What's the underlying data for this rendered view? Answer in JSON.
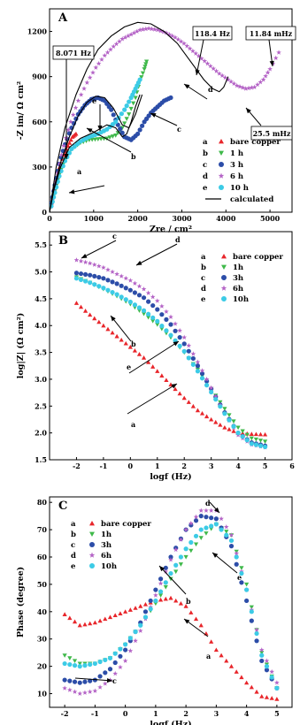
{
  "chart_data": [
    {
      "panel": "A",
      "type": "scatter",
      "xlabel": "Zre /    cm²",
      "ylabel": "-Z im/ Ω cm²",
      "xlim": [
        0,
        5500
      ],
      "ylim": [
        0,
        1350
      ],
      "xticks": [
        0,
        1000,
        2000,
        3000,
        4000,
        5000
      ],
      "yticks": [
        0,
        300,
        600,
        900,
        1200
      ],
      "legend": {
        "position": "right",
        "entries": [
          {
            "letter": "a",
            "name": "bare copper",
            "marker": "triangle-up",
            "color": "#e8262b"
          },
          {
            "letter": "b",
            "name": "1 h",
            "marker": "triangle-down",
            "color": "#3fb94a"
          },
          {
            "letter": "c",
            "name": "3 h",
            "marker": "circle",
            "color": "#2c4da8"
          },
          {
            "letter": "d",
            "name": "6 h",
            "marker": "star",
            "color": "#b463c6"
          },
          {
            "letter": "e",
            "name": "10 h",
            "marker": "circle",
            "color": "#3ccbe6"
          },
          {
            "letter": "",
            "name": "calculated",
            "marker": "line",
            "color": "#000000"
          }
        ]
      },
      "annotations": [
        "8.071 Hz",
        "118.4 Hz",
        "11.84 mHz",
        "25.5 mHz"
      ],
      "curve_labels": [
        "a",
        "b",
        "c",
        "d",
        "e"
      ],
      "series": [
        {
          "name": "bare copper",
          "x": [
            30,
            80,
            150,
            230,
            320,
            420,
            520,
            600
          ],
          "y": [
            40,
            110,
            210,
            300,
            380,
            440,
            500,
            520
          ]
        },
        {
          "name": "1 h",
          "x": [
            40,
            120,
            220,
            350,
            500,
            700,
            900,
            1100,
            1300,
            1500,
            1650,
            1800,
            1950,
            2050,
            2150,
            2200
          ],
          "y": [
            50,
            140,
            250,
            350,
            420,
            460,
            480,
            485,
            490,
            510,
            560,
            650,
            760,
            870,
            950,
            1000
          ]
        },
        {
          "name": "3 h",
          "x": [
            40,
            120,
            220,
            350,
            500,
            650,
            800,
            950,
            1100,
            1250,
            1400,
            1550,
            1700,
            1850,
            2000,
            2150,
            2300,
            2450,
            2600,
            2750
          ],
          "y": [
            60,
            180,
            320,
            450,
            560,
            650,
            710,
            750,
            760,
            740,
            680,
            580,
            500,
            480,
            520,
            600,
            660,
            700,
            740,
            760
          ]
        },
        {
          "name": "6 h",
          "x": [
            60,
            180,
            320,
            480,
            650,
            850,
            1050,
            1250,
            1450,
            1650,
            1850,
            2050,
            2250,
            2450,
            2650,
            2850,
            3050,
            3250,
            3450,
            3650,
            3850,
            4050,
            4250,
            4450,
            4650,
            4850,
            5000,
            5200
          ],
          "y": [
            80,
            260,
            440,
            600,
            740,
            860,
            960,
            1040,
            1100,
            1150,
            1180,
            1210,
            1220,
            1210,
            1190,
            1160,
            1120,
            1070,
            1020,
            970,
            920,
            880,
            840,
            820,
            830,
            880,
            950,
            1060
          ]
        },
        {
          "name": "10 h",
          "x": [
            40,
            120,
            220,
            350,
            500,
            700,
            900,
            1100,
            1300,
            1500,
            1700,
            1850,
            1950,
            2050
          ],
          "y": [
            40,
            130,
            240,
            340,
            420,
            470,
            500,
            520,
            550,
            600,
            680,
            760,
            820,
            880
          ]
        }
      ]
    },
    {
      "panel": "B",
      "type": "scatter",
      "xlabel": "logf (Hz)",
      "ylabel": "log|Z| (Ω cm²)",
      "xlim": [
        -3,
        6
      ],
      "ylim": [
        1.5,
        5.75
      ],
      "xticks": [
        -2,
        -1,
        0,
        1,
        2,
        3,
        4,
        5,
        6
      ],
      "yticks": [
        1.5,
        2.0,
        2.5,
        3.0,
        3.5,
        4.0,
        4.5,
        5.0,
        5.5
      ],
      "legend": {
        "position": "top-right",
        "entries": [
          {
            "letter": "a",
            "name": "bare copper"
          },
          {
            "letter": "b",
            "name": "1h"
          },
          {
            "letter": "c",
            "name": "3h"
          },
          {
            "letter": "d",
            "name": "6h"
          },
          {
            "letter": "e",
            "name": "10h"
          }
        ]
      },
      "curve_labels": [
        "a",
        "b",
        "c",
        "d",
        "e"
      ],
      "series": [
        {
          "name": "bare copper",
          "x": [
            -2,
            -1.5,
            -1,
            -0.5,
            0,
            0.5,
            1,
            1.5,
            2,
            2.5,
            3,
            3.5,
            4,
            4.5,
            5
          ],
          "y": [
            4.42,
            4.2,
            4.0,
            3.8,
            3.6,
            3.4,
            3.15,
            2.9,
            2.65,
            2.42,
            2.25,
            2.1,
            2.0,
            1.98,
            1.97
          ]
        },
        {
          "name": "1h",
          "x": [
            -2,
            -1.5,
            -1,
            -0.5,
            0,
            0.5,
            1,
            1.5,
            2,
            2.5,
            3,
            3.5,
            4,
            4.5,
            5
          ],
          "y": [
            4.9,
            4.8,
            4.68,
            4.55,
            4.4,
            4.22,
            4.02,
            3.78,
            3.5,
            3.18,
            2.82,
            2.45,
            2.1,
            1.9,
            1.84
          ]
        },
        {
          "name": "3h",
          "x": [
            -2,
            -1.5,
            -1,
            -0.5,
            0,
            0.5,
            1,
            1.5,
            2,
            2.5,
            3,
            3.5,
            4,
            4.5,
            5
          ],
          "y": [
            4.98,
            4.94,
            4.88,
            4.78,
            4.66,
            4.52,
            4.3,
            4.02,
            3.66,
            3.25,
            2.82,
            2.38,
            2.0,
            1.82,
            1.76
          ]
        },
        {
          "name": "6h",
          "x": [
            -2,
            -1.5,
            -1,
            -0.5,
            0,
            0.5,
            1,
            1.5,
            2,
            2.5,
            3,
            3.5,
            4,
            4.5,
            5
          ],
          "y": [
            5.22,
            5.16,
            5.08,
            4.96,
            4.84,
            4.68,
            4.46,
            4.16,
            3.78,
            3.32,
            2.84,
            2.36,
            1.96,
            1.78,
            1.73
          ]
        },
        {
          "name": "10h",
          "x": [
            -2,
            -1.5,
            -1,
            -0.5,
            0,
            0.5,
            1,
            1.5,
            2,
            2.5,
            3,
            3.5,
            4,
            4.5,
            5
          ],
          "y": [
            4.88,
            4.8,
            4.7,
            4.58,
            4.44,
            4.28,
            4.08,
            3.82,
            3.52,
            3.15,
            2.76,
            2.36,
            2.0,
            1.8,
            1.74
          ]
        }
      ]
    },
    {
      "panel": "C",
      "type": "scatter",
      "xlabel": "logf (Hz)",
      "ylabel": "Phase (degree)",
      "xlim": [
        -2.5,
        5.5
      ],
      "ylim": [
        5,
        82
      ],
      "xticks": [
        -2,
        -1,
        0,
        1,
        2,
        3,
        4,
        5
      ],
      "yticks": [
        10,
        20,
        30,
        40,
        50,
        60,
        70,
        80
      ],
      "legend": {
        "position": "top-left",
        "entries": [
          {
            "letter": "a",
            "name": "bare copper"
          },
          {
            "letter": "b",
            "name": "1h"
          },
          {
            "letter": "c",
            "name": "3h"
          },
          {
            "letter": "d",
            "name": "6h"
          },
          {
            "letter": "e",
            "name": "10h"
          }
        ]
      },
      "curve_labels": [
        "a",
        "b",
        "c",
        "d",
        "e"
      ],
      "series": [
        {
          "name": "bare copper",
          "x": [
            -2,
            -1.5,
            -1,
            -0.5,
            0,
            0.5,
            1,
            1.5,
            2,
            2.5,
            3,
            3.5,
            4,
            4.5,
            5
          ],
          "y": [
            39,
            35,
            36,
            38,
            40,
            42,
            44,
            45,
            42,
            35,
            26,
            20,
            14,
            9,
            8
          ]
        },
        {
          "name": "1h",
          "x": [
            -2,
            -1.5,
            -1,
            -0.5,
            0,
            0.5,
            1,
            1.5,
            2,
            2.5,
            3,
            3.5,
            4,
            4.5,
            5
          ],
          "y": [
            24,
            21,
            21,
            23,
            28,
            35,
            43,
            52,
            60,
            67,
            72,
            68,
            50,
            25,
            12
          ]
        },
        {
          "name": "3h",
          "x": [
            -2,
            -1.5,
            -1,
            -0.5,
            0,
            0.5,
            1,
            1.5,
            2,
            2.5,
            3,
            3.5,
            4,
            4.5,
            5
          ],
          "y": [
            15,
            14,
            15,
            19,
            26,
            36,
            48,
            60,
            70,
            75,
            74,
            64,
            44,
            22,
            12
          ]
        },
        {
          "name": "6h",
          "x": [
            -2,
            -1.5,
            -1,
            -0.5,
            0,
            0.5,
            1,
            1.5,
            2,
            2.5,
            3,
            3.5,
            4,
            4.5,
            5
          ],
          "y": [
            12,
            10,
            11,
            15,
            22,
            33,
            46,
            59,
            70,
            77,
            77,
            68,
            48,
            26,
            14
          ]
        },
        {
          "name": "10h",
          "x": [
            -2,
            -1.5,
            -1,
            -0.5,
            0,
            0.5,
            1,
            1.5,
            2,
            2.5,
            3,
            3.5,
            4,
            4.5,
            5
          ],
          "y": [
            21,
            20,
            21,
            23,
            28,
            35,
            44,
            54,
            63,
            70,
            72,
            66,
            48,
            24,
            12
          ]
        }
      ]
    }
  ]
}
